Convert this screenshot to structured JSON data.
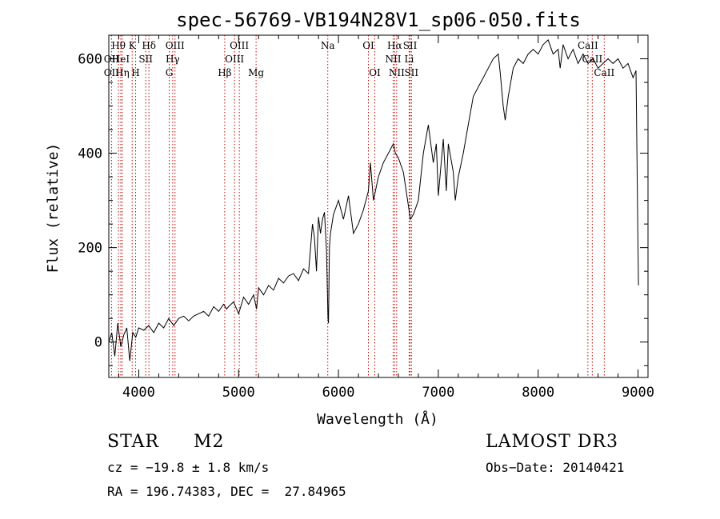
{
  "chart_data": {
    "type": "line",
    "title": "spec-56769-VB194N28V1_sp06-050.fits",
    "xlabel": "Wavelength (Å)",
    "ylabel": "Flux (relative)",
    "xlim": [
      3700,
      9100
    ],
    "ylim": [
      -75,
      650
    ],
    "x_ticks": [
      4000,
      5000,
      6000,
      7000,
      8000,
      9000
    ],
    "y_ticks": [
      0,
      200,
      400,
      600
    ],
    "series": [
      {
        "name": "flux",
        "x": [
          3700,
          3730,
          3760,
          3790,
          3820,
          3850,
          3880,
          3910,
          3940,
          3970,
          4000,
          4050,
          4100,
          4150,
          4200,
          4250,
          4300,
          4350,
          4400,
          4450,
          4500,
          4550,
          4600,
          4650,
          4700,
          4750,
          4800,
          4850,
          4880,
          4900,
          4950,
          5000,
          5050,
          5100,
          5150,
          5180,
          5200,
          5250,
          5300,
          5350,
          5400,
          5450,
          5500,
          5550,
          5600,
          5650,
          5700,
          5740,
          5760,
          5780,
          5800,
          5820,
          5840,
          5860,
          5880,
          5895,
          5900,
          5910,
          5920,
          5950,
          6000,
          6050,
          6100,
          6150,
          6200,
          6250,
          6300,
          6320,
          6350,
          6400,
          6450,
          6500,
          6550,
          6570,
          6600,
          6650,
          6700,
          6720,
          6750,
          6800,
          6850,
          6900,
          6950,
          6980,
          7000,
          7050,
          7080,
          7100,
          7150,
          7170,
          7200,
          7250,
          7300,
          7350,
          7400,
          7450,
          7500,
          7550,
          7600,
          7620,
          7650,
          7670,
          7700,
          7750,
          7800,
          7850,
          7900,
          7950,
          8000,
          8050,
          8100,
          8150,
          8200,
          8220,
          8250,
          8300,
          8350,
          8400,
          8450,
          8500,
          8550,
          8600,
          8650,
          8700,
          8750,
          8800,
          8850,
          8900,
          8950,
          8980,
          9000,
          9005
        ],
        "y": [
          0,
          20,
          -30,
          40,
          -10,
          15,
          30,
          -40,
          20,
          10,
          30,
          25,
          35,
          20,
          40,
          30,
          50,
          35,
          50,
          55,
          45,
          55,
          60,
          65,
          55,
          75,
          65,
          80,
          70,
          75,
          85,
          60,
          95,
          80,
          100,
          70,
          115,
          100,
          120,
          110,
          135,
          125,
          140,
          145,
          130,
          155,
          145,
          250,
          220,
          150,
          265,
          230,
          260,
          275,
          195,
          50,
          40,
          200,
          230,
          270,
          300,
          260,
          310,
          230,
          250,
          280,
          320,
          380,
          300,
          350,
          380,
          400,
          420,
          400,
          390,
          360,
          290,
          260,
          270,
          300,
          400,
          460,
          380,
          420,
          310,
          430,
          320,
          420,
          360,
          300,
          350,
          400,
          460,
          520,
          540,
          560,
          580,
          600,
          610,
          570,
          500,
          470,
          520,
          580,
          600,
          590,
          610,
          620,
          610,
          630,
          640,
          610,
          620,
          580,
          630,
          600,
          620,
          590,
          610,
          590,
          600,
          580,
          590,
          600,
          590,
          600,
          580,
          590,
          560,
          575,
          200,
          120
        ]
      }
    ],
    "lines": {
      "top": [
        {
          "label": "Hθ",
          "x": 3797
        },
        {
          "label": "K",
          "x": 3934
        },
        {
          "label": "Hδ",
          "x": 4102
        },
        {
          "label": "OIII",
          "x": 4363
        },
        {
          "label": "OIII",
          "x": 5007
        },
        {
          "label": "Na",
          "x": 5893
        },
        {
          "label": "OI",
          "x": 6300
        },
        {
          "label": "Hα",
          "x": 6563
        },
        {
          "label": "SII",
          "x": 6717
        },
        {
          "label": "CaII",
          "x": 8498
        }
      ],
      "mid": [
        {
          "label": "OII",
          "x": 3727
        },
        {
          "label": "HeI",
          "x": 3820
        },
        {
          "label": "SII",
          "x": 4070
        },
        {
          "label": "Hγ",
          "x": 4340
        },
        {
          "label": "OIII",
          "x": 4959
        },
        {
          "label": "NII",
          "x": 6548
        },
        {
          "label": "Li",
          "x": 6708
        },
        {
          "label": "CaII",
          "x": 8542
        }
      ],
      "bottom": [
        {
          "label": "OII",
          "x": 3727
        },
        {
          "label": "Hη",
          "x": 3835
        },
        {
          "label": "H",
          "x": 3968
        },
        {
          "label": "G",
          "x": 4305
        },
        {
          "label": "Hβ",
          "x": 4861
        },
        {
          "label": "Mg",
          "x": 5175
        },
        {
          "label": "OI",
          "x": 6364
        },
        {
          "label": "NII",
          "x": 6583
        },
        {
          "label": "SII",
          "x": 6731
        },
        {
          "label": "CaII",
          "x": 8662
        }
      ]
    }
  },
  "info": {
    "object_class": "STAR",
    "subclass": "M2",
    "survey": "LAMOST DR3",
    "cz": "cz = −19.8 ± 1.8 km/s",
    "obs_date": "Obs−Date: 20140421",
    "coords": "RA = 196.74383, DEC =  27.84965"
  },
  "colors": {
    "axis": "#000000",
    "spectrum": "#000000",
    "line_marker": "#cc0000",
    "background": "#ffffff"
  }
}
